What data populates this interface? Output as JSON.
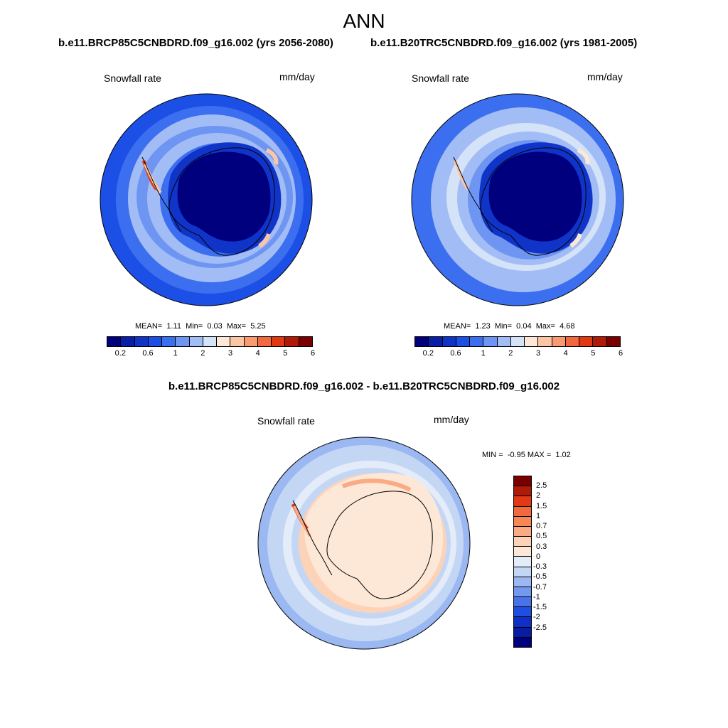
{
  "title": "ANN",
  "panels": [
    {
      "case_title": "b.e11.BRCP85C5CNBDRD.f09_g16.002 (yrs 2056-2080)",
      "variable": "Snowfall rate",
      "units": "mm/day",
      "mean_label": "MEAN=",
      "mean": "1.11",
      "min_label": "Min=",
      "min": "0.03",
      "max_label": "Max=",
      "max": "5.25"
    },
    {
      "case_title": "b.e11.B20TRC5CNBDRD.f09_g16.002 (yrs 1981-2005)",
      "variable": "Snowfall rate",
      "units": "mm/day",
      "mean_label": "MEAN=",
      "mean": "1.23",
      "min_label": "Min=",
      "min": "0.04",
      "max_label": "Max=",
      "max": "4.68"
    }
  ],
  "colorbar": {
    "colors": [
      "#00007f",
      "#0a1fa8",
      "#1034c8",
      "#1c4fe6",
      "#3c6fef",
      "#6e95f2",
      "#a2bdf5",
      "#d5e3f8",
      "#fde7d6",
      "#fbc6a6",
      "#f89a72",
      "#f2683f",
      "#e23814",
      "#b11a06",
      "#7a0000"
    ],
    "ticks": [
      "0.2",
      "0.6",
      "1",
      "2",
      "3",
      "4",
      "5",
      "6"
    ]
  },
  "difference": {
    "title": "b.e11.BRCP85C5CNBDRD.f09_g16.002 - b.e11.B20TRC5CNBDRD.f09_g16.002",
    "variable": "Snowfall rate",
    "units": "mm/day",
    "min_label": "MIN =",
    "min": "-0.95",
    "max_label": "MAX =",
    "max": "1.02",
    "colors": [
      "#7a0000",
      "#b11a06",
      "#e23814",
      "#f2683f",
      "#f78855",
      "#fbab84",
      "#fdd3b8",
      "#fde7d6",
      "#e3ecf8",
      "#c3d7f5",
      "#9bb8f2",
      "#7398ef",
      "#4a73ea",
      "#1f4ee2",
      "#0f2fc6",
      "#081da6",
      "#00007f"
    ],
    "ticks": [
      "2.5",
      "2",
      "1.5",
      "1",
      "0.7",
      "0.5",
      "0.3",
      "0",
      "-0.3",
      "-0.5",
      "-0.7",
      "-1",
      "-1.5",
      "-2",
      "-2.5"
    ]
  }
}
